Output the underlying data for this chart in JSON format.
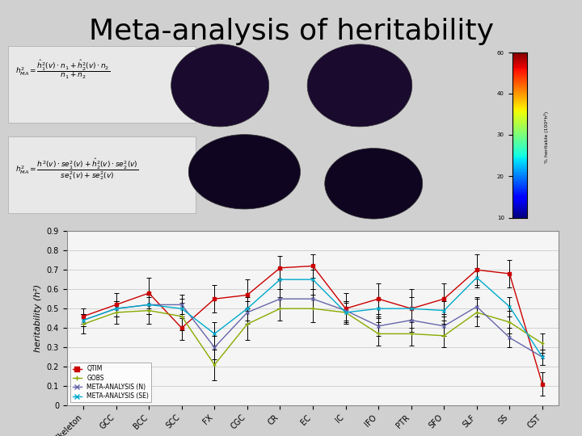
{
  "title": "Meta-analysis of heritability",
  "categories": [
    "Skeleton",
    "GCC",
    "BCC",
    "SCC",
    "FX",
    "CGC",
    "CR",
    "EC",
    "IC",
    "IFO",
    "PTR",
    "SFO",
    "SLF",
    "SS",
    "CST"
  ],
  "ylabel": "heritability (h²)",
  "ylim": [
    0,
    0.9
  ],
  "yticks": [
    0,
    0.1,
    0.2,
    0.3,
    0.4,
    0.5,
    0.6,
    0.7,
    0.8,
    0.9
  ],
  "series": {
    "QTIM": {
      "color": "#cc0000",
      "marker": "s",
      "values": [
        0.46,
        0.52,
        0.58,
        0.4,
        0.55,
        0.57,
        0.71,
        0.72,
        0.5,
        0.55,
        0.5,
        0.55,
        0.7,
        0.68,
        0.11
      ],
      "errors": [
        0.04,
        0.06,
        0.08,
        0.06,
        0.07,
        0.08,
        0.06,
        0.06,
        0.08,
        0.08,
        0.1,
        0.08,
        0.08,
        0.07,
        0.06
      ]
    },
    "GOBS": {
      "color": "#88aa00",
      "marker": "+",
      "values": [
        0.42,
        0.48,
        0.49,
        0.46,
        0.21,
        0.42,
        0.5,
        0.5,
        0.48,
        0.37,
        0.37,
        0.36,
        0.48,
        0.43,
        0.32
      ],
      "errors": [
        0.05,
        0.06,
        0.07,
        0.07,
        0.08,
        0.08,
        0.06,
        0.07,
        0.06,
        0.06,
        0.06,
        0.06,
        0.07,
        0.06,
        0.05
      ]
    },
    "META-ANALYSIS (N)": {
      "color": "#6666aa",
      "marker": "x",
      "values": [
        0.44,
        0.5,
        0.52,
        0.52,
        0.3,
        0.48,
        0.55,
        0.55,
        0.49,
        0.41,
        0.44,
        0.41,
        0.51,
        0.35,
        0.25
      ],
      "errors": [
        0.03,
        0.04,
        0.05,
        0.05,
        0.06,
        0.06,
        0.05,
        0.05,
        0.05,
        0.05,
        0.06,
        0.05,
        0.05,
        0.05,
        0.04
      ]
    },
    "META-ANALYSIS (SE)": {
      "color": "#00aacc",
      "marker": "x",
      "values": [
        0.44,
        0.5,
        0.52,
        0.5,
        0.37,
        0.5,
        0.65,
        0.65,
        0.48,
        0.5,
        0.5,
        0.49,
        0.66,
        0.51,
        0.25
      ],
      "errors": [
        0.03,
        0.04,
        0.05,
        0.05,
        0.06,
        0.06,
        0.05,
        0.05,
        0.05,
        0.05,
        0.06,
        0.05,
        0.05,
        0.05,
        0.04
      ]
    }
  },
  "slide_bg": "#d0d0d0",
  "chart_bg": "#f5f5f5",
  "grid_color": "#cccccc",
  "title_fontsize": 26,
  "axis_fontsize": 7,
  "label_fontsize": 8
}
